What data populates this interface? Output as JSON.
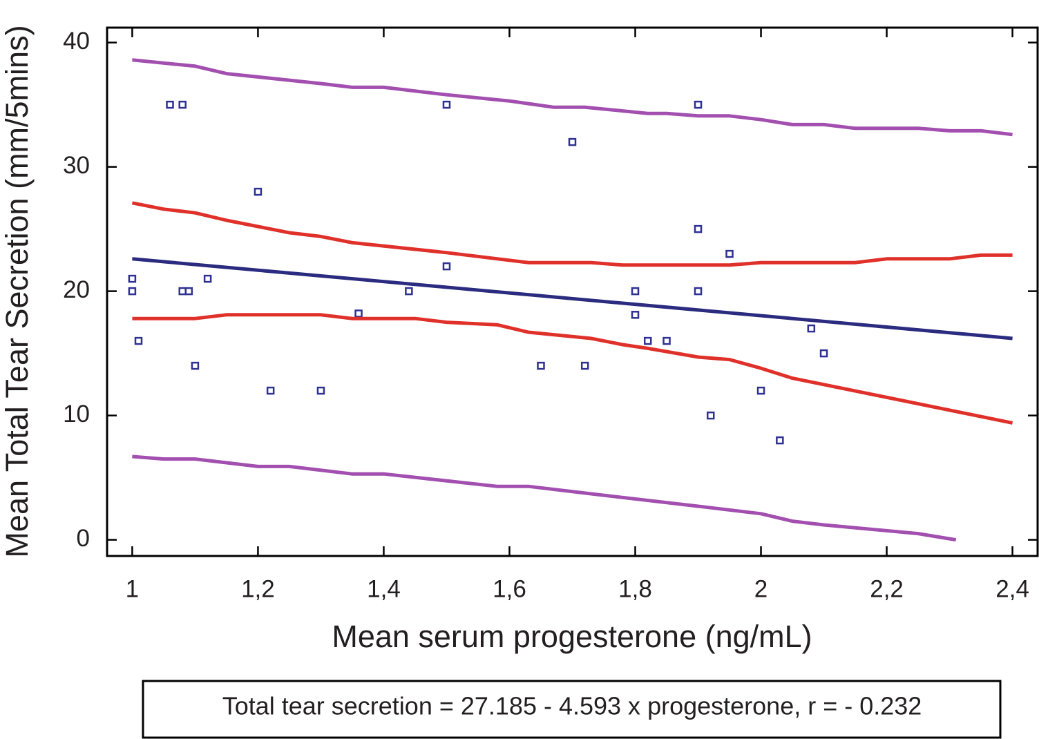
{
  "chart_data": {
    "type": "scatter",
    "x_label": "Mean serum progesterone (ng/mL)",
    "y_label": "Mean Total Tear Secretion (mm/5mins)",
    "annotation": "Total tear secretion = 27.185 - 4.593 x progesterone, r = - 0.232",
    "xlim": [
      0.96,
      2.44
    ],
    "ylim": [
      -1.3,
      41.2
    ],
    "xticks": [
      1,
      {
        "value": 1.2,
        "label": "1,2"
      },
      {
        "value": 1.4,
        "label": "1,4"
      },
      {
        "value": 1.6,
        "label": "1,6"
      },
      {
        "value": 1.8,
        "label": "1,8"
      },
      2,
      {
        "value": 2.2,
        "label": "2,2"
      },
      {
        "value": 2.4,
        "label": "2,4"
      }
    ],
    "yticks": [
      0,
      10,
      20,
      30,
      40
    ],
    "series": [
      {
        "type": "scatter",
        "color": "#2e3192",
        "x": [
          1.0,
          1.0,
          1.01,
          1.06,
          1.08,
          1.08,
          1.09,
          1.1,
          1.12,
          1.2,
          1.22,
          1.3,
          1.36,
          1.44,
          1.5,
          1.5,
          1.65,
          1.7,
          1.72,
          1.8,
          1.8,
          1.82,
          1.85,
          1.9,
          1.9,
          1.9,
          1.92,
          1.95,
          2.0,
          2.03,
          2.08,
          2.1
        ],
        "values": [
          21,
          20,
          16,
          35,
          35,
          20,
          20,
          14,
          21,
          28,
          12,
          12,
          18.2,
          20,
          35,
          22,
          14,
          32,
          14,
          20,
          18.1,
          16,
          16,
          35,
          25,
          20,
          10,
          23,
          12,
          8,
          17,
          15
        ]
      },
      {
        "type": "line",
        "color": "#2b2b80",
        "x": [
          1.0,
          2.4
        ],
        "values": [
          22.6,
          16.2
        ]
      },
      {
        "type": "line",
        "color": "#e0302a",
        "x": [
          1.0,
          1.05,
          1.1,
          1.15,
          1.25,
          1.3,
          1.35,
          1.5,
          1.63,
          1.73,
          1.78,
          1.95,
          2.0,
          2.15,
          2.2,
          2.3,
          2.35,
          2.4
        ],
        "values": [
          27.1,
          26.6,
          26.3,
          25.7,
          24.7,
          24.4,
          23.9,
          23.1,
          22.3,
          22.3,
          22.1,
          22.1,
          22.3,
          22.3,
          22.6,
          22.6,
          22.9,
          22.9
        ]
      },
      {
        "type": "line",
        "color": "#e0302a",
        "x": [
          1.0,
          1.1,
          1.15,
          1.3,
          1.35,
          1.45,
          1.5,
          1.58,
          1.63,
          1.73,
          1.78,
          1.82,
          1.9,
          1.95,
          2.0,
          2.05,
          2.4
        ],
        "values": [
          17.8,
          17.8,
          18.1,
          18.1,
          17.8,
          17.8,
          17.5,
          17.3,
          16.7,
          16.2,
          15.7,
          15.4,
          14.7,
          14.5,
          13.8,
          13.0,
          9.4
        ]
      },
      {
        "type": "line",
        "color": "#a24fb0",
        "x": [
          1.0,
          1.1,
          1.15,
          1.3,
          1.35,
          1.4,
          1.5,
          1.6,
          1.67,
          1.72,
          1.82,
          1.85,
          1.9,
          1.95,
          2.0,
          2.05,
          2.1,
          2.15,
          2.25,
          2.3,
          2.35,
          2.4
        ],
        "values": [
          38.6,
          38.1,
          37.5,
          36.7,
          36.4,
          36.4,
          35.8,
          35.3,
          34.8,
          34.8,
          34.3,
          34.3,
          34.1,
          34.1,
          33.8,
          33.4,
          33.4,
          33.1,
          33.1,
          32.9,
          32.9,
          32.6
        ]
      },
      {
        "type": "line",
        "color": "#a24fb0",
        "x": [
          1.0,
          1.05,
          1.1,
          1.2,
          1.25,
          1.35,
          1.4,
          1.58,
          1.63,
          1.73,
          1.9,
          2.0,
          2.05,
          2.1,
          2.25,
          2.31
        ],
        "values": [
          6.7,
          6.5,
          6.5,
          5.9,
          5.9,
          5.3,
          5.3,
          4.3,
          4.3,
          3.7,
          2.7,
          2.1,
          1.5,
          1.2,
          0.5,
          0
        ]
      }
    ]
  }
}
